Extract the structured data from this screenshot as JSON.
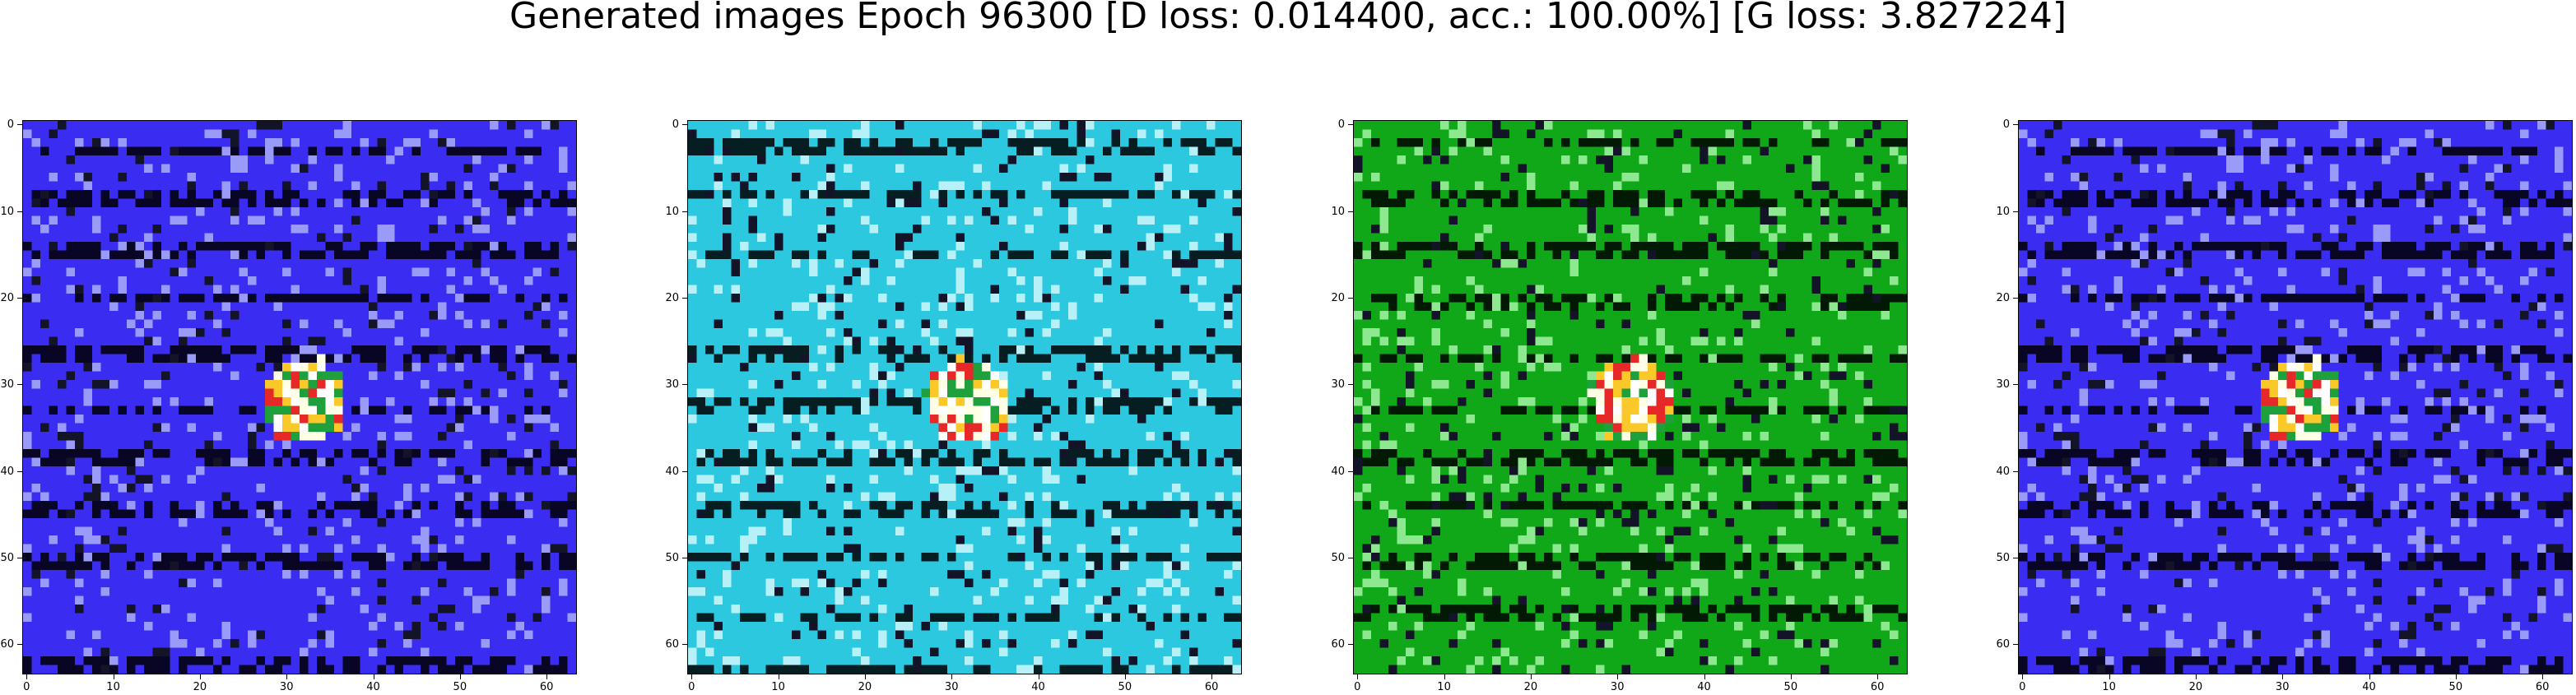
{
  "figure": {
    "title": "Generated images Epoch 96300 [D loss: 0.014400, acc.: 100.00%] [G loss: 3.827224]"
  },
  "axes": {
    "x_ticks": [
      "0",
      "10",
      "20",
      "30",
      "40",
      "50",
      "60"
    ],
    "y_ticks": [
      "0",
      "10",
      "20",
      "30",
      "40",
      "50",
      "60"
    ],
    "range": [
      0,
      63
    ]
  },
  "images": [
    {
      "name": "generated-image-1",
      "palette": "blue",
      "base_color": "#3a2cf0",
      "accent_color": "#9a9af8"
    },
    {
      "name": "generated-image-2",
      "palette": "cyan",
      "base_color": "#2cc8e0",
      "accent_color": "#b8f0f8"
    },
    {
      "name": "generated-image-3",
      "palette": "green",
      "base_color": "#10a818",
      "accent_color": "#8ee890"
    },
    {
      "name": "generated-image-4",
      "palette": "blue",
      "base_color": "#3a2cf0",
      "accent_color": "#9a9af8"
    }
  ]
}
